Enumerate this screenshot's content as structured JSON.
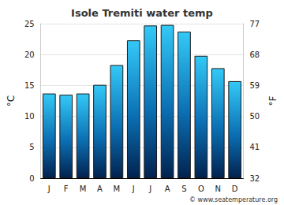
{
  "chart_data": {
    "type": "bar",
    "title": "Isole Tremiti water temp",
    "categories": [
      "J",
      "F",
      "M",
      "A",
      "M",
      "J",
      "J",
      "A",
      "S",
      "O",
      "N",
      "D"
    ],
    "values": [
      13.7,
      13.5,
      13.7,
      15.1,
      18.3,
      22.3,
      24.7,
      24.8,
      23.7,
      19.8,
      17.8,
      15.7
    ],
    "color": "#33c9f7",
    "ylabel": "°C",
    "y2label": "°F",
    "ylim": [
      0,
      25
    ],
    "yticks": [
      0,
      5,
      10,
      15,
      20,
      25
    ],
    "y2lim": [
      32,
      77
    ],
    "y2ticks": [
      32,
      41,
      50,
      59,
      68,
      77
    ],
    "grid": true,
    "annotation": "© www.seatemperature.org"
  }
}
